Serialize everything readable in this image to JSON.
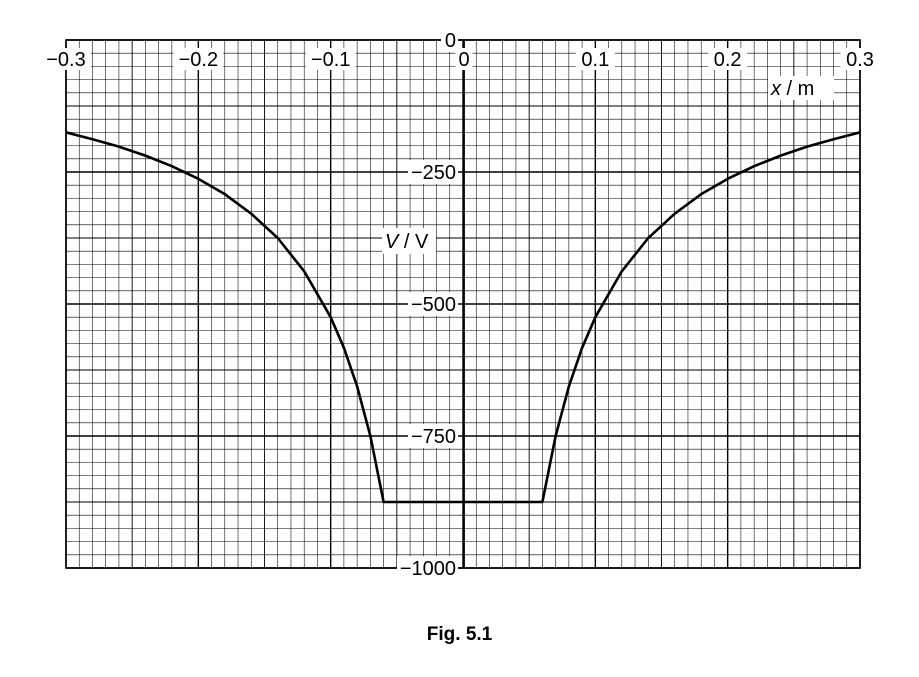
{
  "figure": {
    "caption": "Fig. 5.1"
  },
  "chart_data": {
    "type": "line",
    "xlim": [
      -0.3,
      0.3
    ],
    "ylim": [
      -1000,
      0
    ],
    "x_ticks": [
      -0.3,
      -0.2,
      -0.1,
      0,
      0.1,
      0.2,
      0.3
    ],
    "x_tick_labels": [
      "−0.3",
      "−0.2",
      "−0.1",
      "0",
      "0.1",
      "0.2",
      "0.3"
    ],
    "y_ticks": [
      0,
      -250,
      -500,
      -750,
      -1000
    ],
    "y_tick_labels": [
      "0",
      "−250",
      "−500",
      "−750",
      "−1000"
    ],
    "xlabel": {
      "symbol": "x",
      "unit": "m"
    },
    "ylabel": {
      "symbol": "V",
      "unit": "V"
    },
    "grid": true,
    "series": [
      {
        "x": [
          -0.3,
          -0.28,
          -0.26,
          -0.24,
          -0.22,
          -0.2,
          -0.18,
          -0.16,
          -0.14,
          -0.12,
          -0.1,
          -0.09,
          -0.08,
          -0.07,
          -0.06,
          0.06,
          0.07,
          0.08,
          0.09,
          0.1,
          0.12,
          0.14,
          0.16,
          0.18,
          0.2,
          0.22,
          0.24,
          0.26,
          0.28,
          0.3
        ],
        "y": [
          -175,
          -188,
          -202,
          -219,
          -239,
          -263,
          -292,
          -329,
          -375,
          -438,
          -525,
          -583,
          -656,
          -750,
          -875,
          -875,
          -750,
          -656,
          -583,
          -525,
          -438,
          -375,
          -329,
          -292,
          -263,
          -239,
          -219,
          -202,
          -188,
          -175
        ]
      }
    ]
  }
}
